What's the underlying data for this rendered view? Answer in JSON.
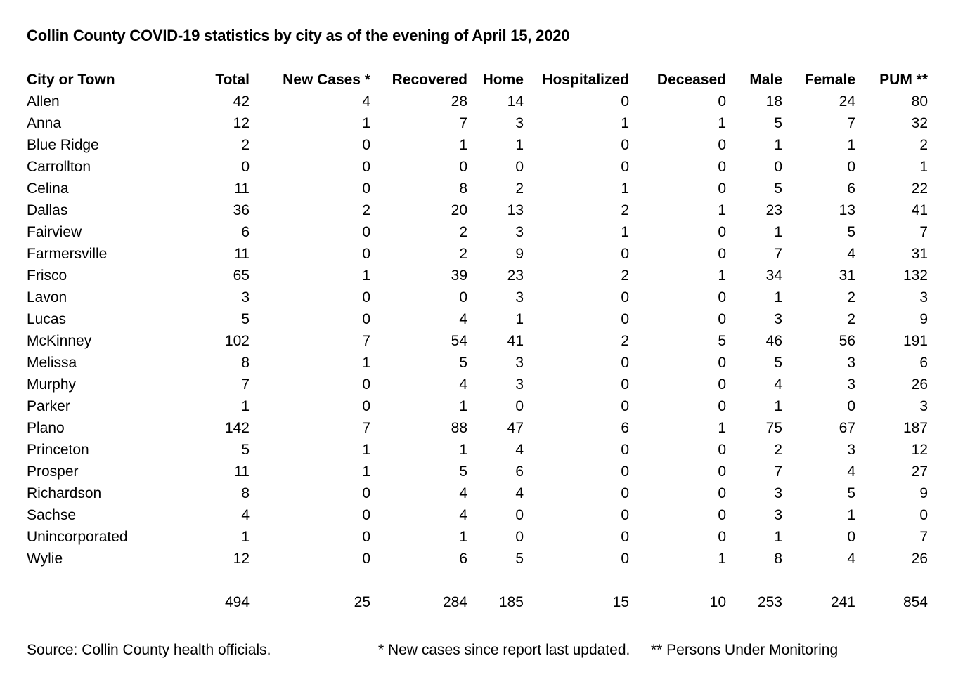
{
  "title": "Collin County COVID-19 statistics by city as of the evening of April 15, 2020",
  "columns": [
    "City or Town",
    "Total",
    "New Cases *",
    "Recovered",
    "Home",
    "Hospitalized",
    "Deceased",
    "Male",
    "Female",
    "PUM **"
  ],
  "rows": [
    [
      "Allen",
      "42",
      "4",
      "28",
      "14",
      "0",
      "0",
      "18",
      "24",
      "80"
    ],
    [
      "Anna",
      "12",
      "1",
      "7",
      "3",
      "1",
      "1",
      "5",
      "7",
      "32"
    ],
    [
      "Blue Ridge",
      "2",
      "0",
      "1",
      "1",
      "0",
      "0",
      "1",
      "1",
      "2"
    ],
    [
      "Carrollton",
      "0",
      "0",
      "0",
      "0",
      "0",
      "0",
      "0",
      "0",
      "1"
    ],
    [
      "Celina",
      "11",
      "0",
      "8",
      "2",
      "1",
      "0",
      "5",
      "6",
      "22"
    ],
    [
      "Dallas",
      "36",
      "2",
      "20",
      "13",
      "2",
      "1",
      "23",
      "13",
      "41"
    ],
    [
      "Fairview",
      "6",
      "0",
      "2",
      "3",
      "1",
      "0",
      "1",
      "5",
      "7"
    ],
    [
      "Farmersville",
      "11",
      "0",
      "2",
      "9",
      "0",
      "0",
      "7",
      "4",
      "31"
    ],
    [
      "Frisco",
      "65",
      "1",
      "39",
      "23",
      "2",
      "1",
      "34",
      "31",
      "132"
    ],
    [
      "Lavon",
      "3",
      "0",
      "0",
      "3",
      "0",
      "0",
      "1",
      "2",
      "3"
    ],
    [
      "Lucas",
      "5",
      "0",
      "4",
      "1",
      "0",
      "0",
      "3",
      "2",
      "9"
    ],
    [
      "McKinney",
      "102",
      "7",
      "54",
      "41",
      "2",
      "5",
      "46",
      "56",
      "191"
    ],
    [
      "Melissa",
      "8",
      "1",
      "5",
      "3",
      "0",
      "0",
      "5",
      "3",
      "6"
    ],
    [
      "Murphy",
      "7",
      "0",
      "4",
      "3",
      "0",
      "0",
      "4",
      "3",
      "26"
    ],
    [
      "Parker",
      "1",
      "0",
      "1",
      "0",
      "0",
      "0",
      "1",
      "0",
      "3"
    ],
    [
      "Plano",
      "142",
      "7",
      "88",
      "47",
      "6",
      "1",
      "75",
      "67",
      "187"
    ],
    [
      "Princeton",
      "5",
      "1",
      "1",
      "4",
      "0",
      "0",
      "2",
      "3",
      "12"
    ],
    [
      "Prosper",
      "11",
      "1",
      "5",
      "6",
      "0",
      "0",
      "7",
      "4",
      "27"
    ],
    [
      "Richardson",
      "8",
      "0",
      "4",
      "4",
      "0",
      "0",
      "3",
      "5",
      "9"
    ],
    [
      "Sachse",
      "4",
      "0",
      "4",
      "0",
      "0",
      "0",
      "3",
      "1",
      "0"
    ],
    [
      "Unincorporated",
      "1",
      "0",
      "1",
      "0",
      "0",
      "0",
      "1",
      "0",
      "7"
    ],
    [
      "Wylie",
      "12",
      "0",
      "6",
      "5",
      "0",
      "1",
      "8",
      "4",
      "26"
    ]
  ],
  "totals": [
    "",
    "494",
    "25",
    "284",
    "185",
    "15",
    "10",
    "253",
    "241",
    "854"
  ],
  "footer": {
    "source": "Source: Collin County health officials.",
    "note_new_cases": "* New cases since report last updated.",
    "note_pum": "** Persons Under Monitoring"
  }
}
